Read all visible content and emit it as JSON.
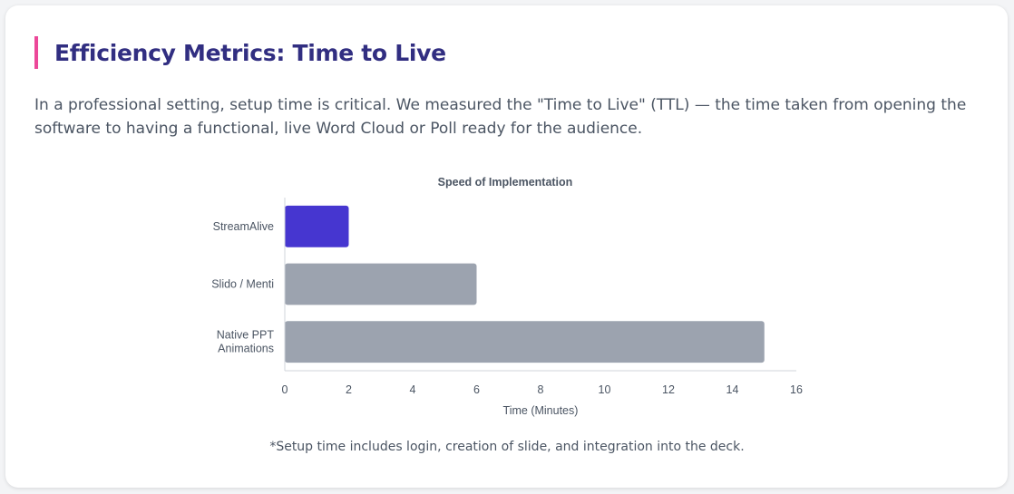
{
  "section": {
    "title": "Efficiency Metrics: Time to Live",
    "intro": "In a professional setting, setup time is critical. We measured the \"Time to Live\" (TTL) — the time taken from opening the software to having a functional, live Word Cloud or Poll ready for the audience.",
    "footnote": "*Setup time includes login, creation of slide, and integration into the deck.",
    "accent_color": "#ec4899",
    "title_color": "#312e81"
  },
  "chart_data": {
    "type": "bar",
    "orientation": "horizontal",
    "title": "Speed of Implementation",
    "xlabel": "Time (Minutes)",
    "ylabel": "",
    "categories": [
      [
        "StreamAlive"
      ],
      [
        "Slido / Menti"
      ],
      [
        "Native PPT",
        "Animations"
      ]
    ],
    "values": [
      2,
      6,
      15
    ],
    "bar_colors": [
      "#4636d0",
      "#9ca3af",
      "#9ca3af"
    ],
    "xlim": [
      0,
      16
    ],
    "xticks": [
      0,
      2,
      4,
      6,
      8,
      10,
      12,
      14,
      16
    ],
    "grid": false,
    "legend": "none"
  }
}
